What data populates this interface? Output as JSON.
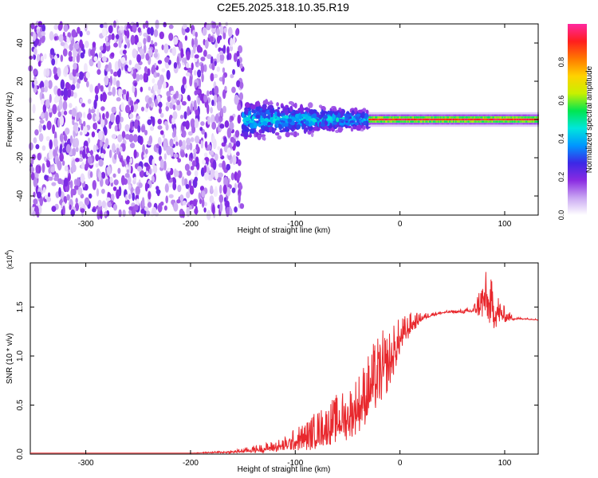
{
  "figure": {
    "title": "C2E5.2025.318.10.35.R19"
  },
  "chart_data": [
    {
      "type": "heatmap",
      "title": "C2E5.2025.318.10.35.R19",
      "xlabel": "Height of straight line (km)",
      "ylabel": "Frequency (Hz)",
      "xlim": [
        -353,
        132
      ],
      "ylim": [
        -50,
        50
      ],
      "x_ticks": [
        "-300",
        "-200",
        "-100",
        "0",
        "100"
      ],
      "y_ticks": [
        "40",
        "20",
        "0",
        "-20",
        "-40"
      ],
      "colorbar": {
        "label": "Normalized spectral amplitude",
        "range": [
          0,
          1
        ],
        "ticks": [
          "0.0",
          "0.2",
          "0.4",
          "0.6",
          "0.8"
        ],
        "colors": [
          "#ffffff",
          "#c9a6f2",
          "#8a2be2",
          "#3c28e6",
          "#0096ff",
          "#00e6dc",
          "#00e650",
          "#c8f000",
          "#ffd200",
          "#ff7800",
          "#ff1e1e",
          "#ff28a0"
        ]
      },
      "regions": [
        {
          "name": "noise",
          "x": [
            -353,
            -150
          ],
          "freq_spread": [
            -50,
            50
          ],
          "amplitude": [
            0.02,
            0.22
          ]
        },
        {
          "name": "transition",
          "x": [
            -150,
            -30
          ],
          "freq_spread": [
            -12,
            12
          ],
          "amplitude": [
            0.1,
            0.5
          ]
        },
        {
          "name": "stable",
          "x": [
            -30,
            132
          ],
          "center_freq": 0,
          "amplitude": [
            0.8,
            0.98
          ]
        }
      ]
    },
    {
      "type": "line",
      "xlabel": "Height of straight line (km)",
      "ylabel": "SNR (10 * v/v)",
      "y_multiplier": "(x10",
      "y_multiplier_exp": "4",
      "xlim": [
        -353,
        132
      ],
      "ylim": [
        0,
        1.95
      ],
      "x_ticks": [
        "-300",
        "-200",
        "-100",
        "0",
        "100"
      ],
      "y_ticks": [
        "0.0",
        "0.5",
        "1.0",
        "1.5"
      ],
      "series": [
        {
          "color": "#e8282d",
          "x": [
            -353,
            -300,
            -250,
            -200,
            -160,
            -130,
            -110,
            -100,
            -90,
            -80,
            -70,
            -60,
            -50,
            -40,
            -30,
            -20,
            -10,
            0,
            10,
            20,
            30,
            40,
            50,
            60,
            70,
            80,
            90,
            100,
            110,
            120,
            132
          ],
          "y": [
            0.01,
            0.01,
            0.01,
            0.01,
            0.02,
            0.05,
            0.08,
            0.12,
            0.15,
            0.2,
            0.25,
            0.3,
            0.35,
            0.45,
            0.6,
            0.75,
            0.9,
            1.15,
            1.3,
            1.38,
            1.42,
            1.44,
            1.45,
            1.45,
            1.46,
            1.55,
            1.45,
            1.4,
            1.38,
            1.38,
            1.37
          ],
          "noise": [
            0,
            0,
            0,
            0,
            0.02,
            0.06,
            0.1,
            0.15,
            0.2,
            0.25,
            0.28,
            0.32,
            0.35,
            0.4,
            0.45,
            0.5,
            0.4,
            0.25,
            0.15,
            0.06,
            0.03,
            0.02,
            0.02,
            0.03,
            0.05,
            0.35,
            0.3,
            0.1,
            0.02,
            0.01,
            0.01
          ]
        }
      ]
    }
  ]
}
